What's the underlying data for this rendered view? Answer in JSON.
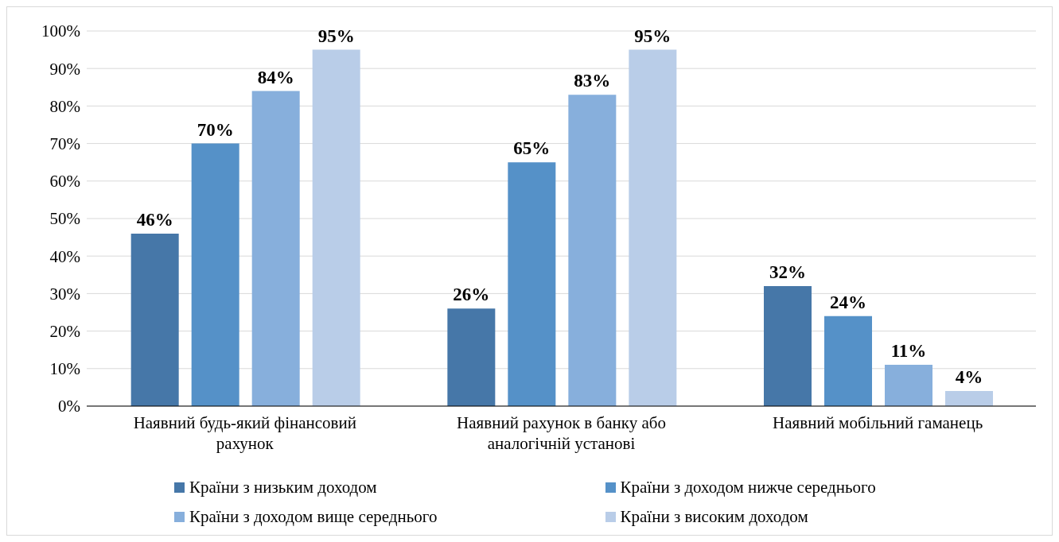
{
  "chart_data": {
    "type": "bar",
    "categories": [
      "Наявний будь-який фінансовий рахунок",
      "Наявний рахунок в банку або аналогічній установі",
      "Наявний мобільний гаманець"
    ],
    "series": [
      {
        "name": "Країни з низьким доходом",
        "color": "#4677a8",
        "values": [
          46,
          26,
          32
        ],
        "value_labels": [
          "46%",
          "26%",
          "32%"
        ]
      },
      {
        "name": "Країни з доходом нижче середнього",
        "color": "#5591c8",
        "values": [
          70,
          65,
          24
        ],
        "value_labels": [
          "70%",
          "65%",
          "24%"
        ]
      },
      {
        "name": "Країни з доходом вище середнього",
        "color": "#87afdc",
        "values": [
          84,
          83,
          11
        ],
        "value_labels": [
          "84%",
          "83%",
          "11%"
        ]
      },
      {
        "name": "Країни з високим доходом",
        "color": "#b9cde8",
        "values": [
          95,
          95,
          4
        ],
        "value_labels": [
          "95%",
          "95%",
          "4%"
        ]
      }
    ],
    "ylim": [
      0,
      100
    ],
    "yticks": [
      {
        "value": 0,
        "label": "0%"
      },
      {
        "value": 10,
        "label": "10%"
      },
      {
        "value": 20,
        "label": "20%"
      },
      {
        "value": 30,
        "label": "30%"
      },
      {
        "value": 40,
        "label": "40%"
      },
      {
        "value": 50,
        "label": "50%"
      },
      {
        "value": 60,
        "label": "60%"
      },
      {
        "value": 70,
        "label": "70%"
      },
      {
        "value": 80,
        "label": "80%"
      },
      {
        "value": 90,
        "label": "90%"
      },
      {
        "value": 100,
        "label": "100%"
      }
    ],
    "grid": "y",
    "legend": "bottom"
  }
}
